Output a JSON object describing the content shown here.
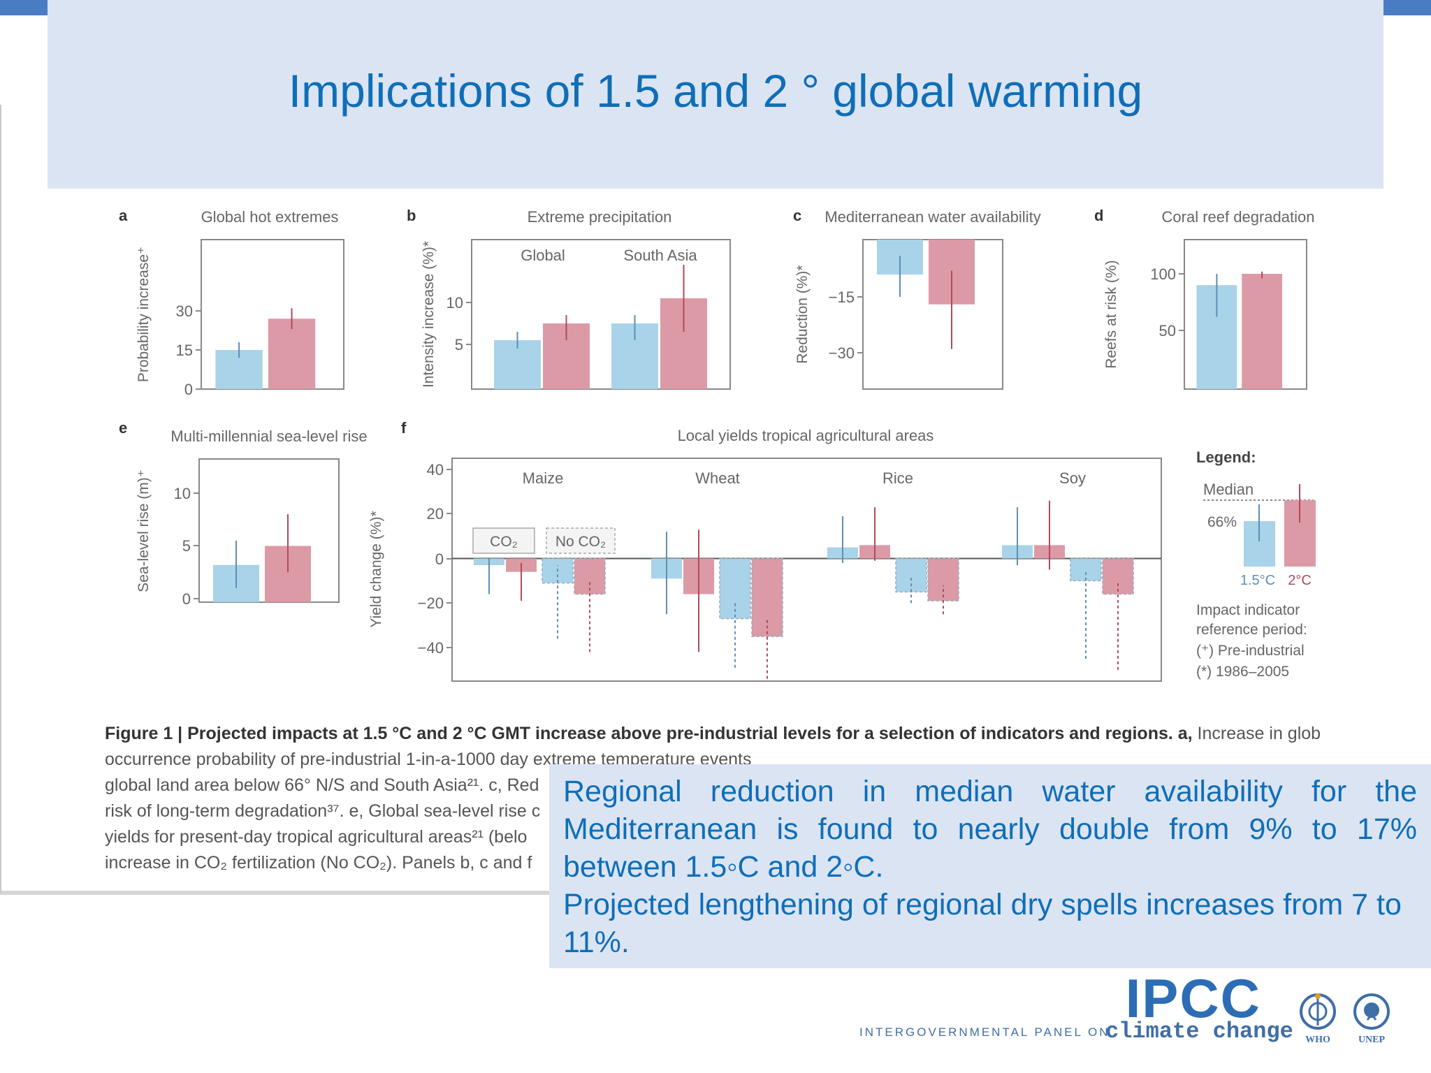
{
  "slide": {
    "title": "Implications of 1.5 and 2 ° global warming"
  },
  "colors": {
    "blue": "#a9d3e8",
    "red": "#dc9aa6",
    "blue_line": "#5d8fb4",
    "red_line": "#b04a5a",
    "title": "#0f6eb8",
    "box": "#dbe4f3"
  },
  "chart_data": [
    {
      "panel": "a",
      "type": "bar",
      "title": "Global hot extremes",
      "ylabel": "Probability increase⁺",
      "yticks": [
        "0",
        "15",
        "30"
      ],
      "ylim": [
        0,
        45
      ],
      "series": [
        {
          "name": "1.5°C",
          "values": [
            15
          ],
          "err": [
            [
              12,
              18
            ]
          ]
        },
        {
          "name": "2°C",
          "values": [
            27
          ],
          "err": [
            [
              23,
              31
            ]
          ]
        }
      ]
    },
    {
      "panel": "b",
      "type": "bar",
      "title": "Extreme precipitation",
      "ylabel": "Intensity increase (%)*",
      "categories": [
        "Global",
        "South Asia"
      ],
      "yticks": [
        "5",
        "10"
      ],
      "ylim": [
        0,
        18
      ],
      "series": [
        {
          "name": "1.5°C",
          "values": [
            5.5,
            7.5
          ],
          "err": [
            [
              4.5,
              6.5
            ],
            [
              5.5,
              8.5
            ]
          ]
        },
        {
          "name": "2°C",
          "values": [
            7.5,
            10.5
          ],
          "err": [
            [
              5.5,
              8.5
            ],
            [
              6.5,
              14.5
            ]
          ]
        }
      ]
    },
    {
      "panel": "c",
      "type": "bar",
      "title": "Mediterranean water availability",
      "ylabel": "Reduction (%)*",
      "yticks": [
        "−15",
        "−30"
      ],
      "ylim": [
        -40,
        0
      ],
      "series": [
        {
          "name": "1.5°C",
          "values": [
            -9
          ],
          "err": [
            [
              -15,
              -4
            ]
          ]
        },
        {
          "name": "2°C",
          "values": [
            -17
          ],
          "err": [
            [
              -29,
              -8
            ]
          ]
        }
      ]
    },
    {
      "panel": "d",
      "type": "bar",
      "title": "Coral reef degradation",
      "ylabel": "Reefs at risk (%)",
      "yticks": [
        "50",
        "100"
      ],
      "ylim": [
        0,
        130
      ],
      "series": [
        {
          "name": "1.5°C",
          "values": [
            90
          ],
          "err": [
            [
              62,
              100
            ]
          ]
        },
        {
          "name": "2°C",
          "values": [
            100
          ],
          "err": [
            [
              96,
              102
            ]
          ]
        }
      ]
    },
    {
      "panel": "e",
      "type": "bar",
      "title": "Multi-millennial sea-level rise",
      "ylabel": "Sea-level rise (m)⁺",
      "yticks": [
        "0",
        "5",
        "10"
      ],
      "ylim": [
        0,
        14
      ],
      "series": [
        {
          "name": "1.5°C",
          "values": [
            3.2
          ],
          "err": [
            [
              1,
              5.5
            ]
          ]
        },
        {
          "name": "2°C",
          "values": [
            5
          ],
          "err": [
            [
              2.5,
              8
            ]
          ]
        }
      ]
    },
    {
      "panel": "f",
      "type": "bar",
      "title": "Local yields tropical agricultural areas",
      "ylabel": "Yield change (%)*",
      "categories": [
        "Maize",
        "Wheat",
        "Rice",
        "Soy"
      ],
      "yticks": [
        "40",
        "20",
        "0",
        "−20",
        "−40"
      ],
      "ylim": [
        -55,
        45
      ],
      "co2_label": "CO₂",
      "noco2_label": "No CO₂",
      "series": [
        {
          "name": "1.5°C CO₂",
          "values": [
            -3,
            -9,
            5,
            6
          ],
          "err": [
            [
              -16,
              0
            ],
            [
              -25,
              12
            ],
            [
              -2,
              19
            ],
            [
              -3,
              23
            ]
          ]
        },
        {
          "name": "2°C CO₂",
          "values": [
            -6,
            -16,
            6,
            6
          ],
          "err": [
            [
              -19,
              -2
            ],
            [
              -42,
              13
            ],
            [
              -1,
              23
            ],
            [
              -5,
              26
            ]
          ]
        },
        {
          "name": "1.5°C No CO₂",
          "values": [
            -11,
            -27,
            -15,
            -10
          ],
          "err": [
            [
              -36,
              -3
            ],
            [
              -49,
              -20
            ],
            [
              -20,
              -8
            ],
            [
              -45,
              -5
            ]
          ]
        },
        {
          "name": "2°C No CO₂",
          "values": [
            -16,
            -35,
            -19,
            -16
          ],
          "err": [
            [
              -42,
              -10
            ],
            [
              -54,
              -27
            ],
            [
              -25,
              -12
            ],
            [
              -50,
              -10
            ]
          ]
        }
      ]
    }
  ],
  "legend": {
    "title": "Legend:",
    "median": "Median",
    "range": "66%",
    "blue_label": "1.5°C",
    "red_label": "2°C",
    "ref_title_1": "Impact indicator",
    "ref_title_2": "reference period:",
    "ref_1": "(⁺) Pre-industrial",
    "ref_2": "(*) 1986–2005"
  },
  "caption": {
    "line1_bold": "Figure 1 | Projected impacts at 1.5 °C and 2 °C GMT increase above pre-industrial levels for a selection of indicators and regions. a,",
    "line1_rest": " Increase in global",
    "line2": "occurrence probability of pre-industrial 1-in-a-1000 day extreme temperature events",
    "line3": "global land area below 66° N/S and South Asia²¹. c, Red",
    "line4": "risk of long-term degradation³⁷. e, Global sea-level rise c",
    "line5": "yields for present-day tropical agricultural areas²¹ (belo",
    "line6": "increase in CO₂ fertilization (No CO₂). Panels b, c and f"
  },
  "callout": {
    "p1": "Regional reduction in median water availability for the Mediterranean is found to nearly double from 9% to 17% between 1.5◦C and 2◦C.",
    "p2": "Projected lengthening of regional dry spells increases from 7 to 11%."
  },
  "logo": {
    "name": "IPCC",
    "sub1": "INTERGOVERNMENTAL PANEL ON",
    "sub2": "climate change",
    "org1": "WHO",
    "org2": "UNEP"
  }
}
